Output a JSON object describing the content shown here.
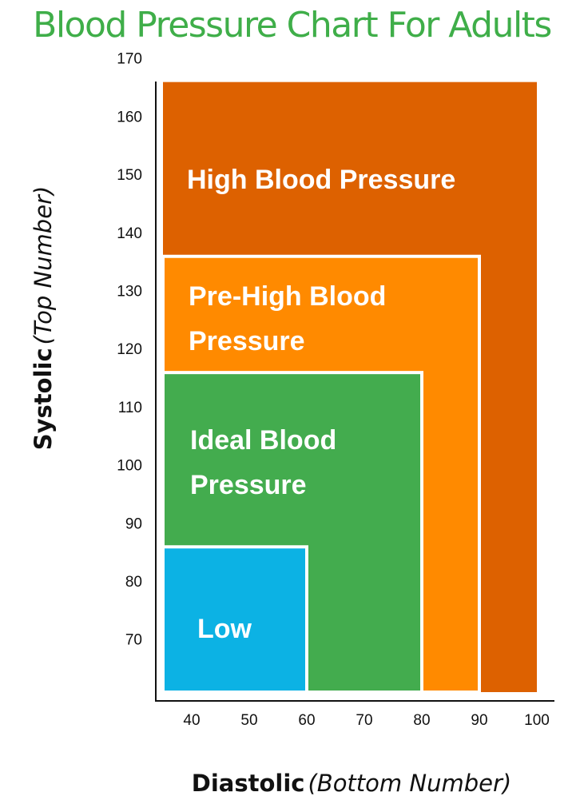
{
  "title": "Blood Pressure Chart For Adults",
  "chart_data": {
    "type": "area",
    "title": "Blood Pressure Chart For Adults",
    "xlabel": {
      "bold": "Diastolic",
      "italic": "(Bottom Number)"
    },
    "ylabel": {
      "bold": "Systolic",
      "italic": "(Top Number)"
    },
    "xlim": [
      35,
      100
    ],
    "ylim": [
      65,
      170
    ],
    "x_ticks": [
      40,
      50,
      60,
      70,
      80,
      90,
      100
    ],
    "y_ticks": [
      70,
      80,
      90,
      100,
      110,
      120,
      130,
      140,
      150,
      160,
      170
    ],
    "zones": [
      {
        "label_lines": [
          "High Blood Pressure"
        ],
        "max_diastolic": 100,
        "max_systolic": 170,
        "color": "#dd6100"
      },
      {
        "label_lines": [
          "Pre-High Blood",
          "Pressure"
        ],
        "max_diastolic": 90,
        "max_systolic": 140,
        "color": "#ff8a00"
      },
      {
        "label_lines": [
          "Ideal Blood",
          "Pressure"
        ],
        "max_diastolic": 80,
        "max_systolic": 120,
        "color": "#43ac4e"
      },
      {
        "label_lines": [
          "Low"
        ],
        "max_diastolic": 60,
        "max_systolic": 90,
        "color": "#0cb2e4"
      }
    ]
  }
}
